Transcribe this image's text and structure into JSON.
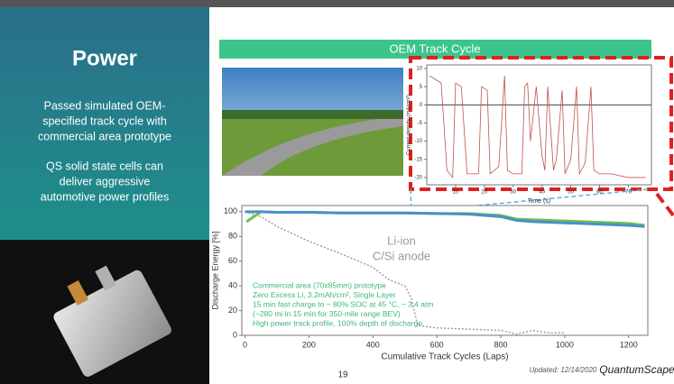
{
  "sidebar": {
    "title": "Power",
    "paragraphs": [
      [
        "Passed simulated OEM-",
        "specified track cycle with",
        "commercial area prototype"
      ],
      [
        "QS solid state cells can",
        "deliver aggressive",
        "automotive power profiles"
      ]
    ]
  },
  "banner": "OEM Track Cycle",
  "charts": [
    {
      "type": "line",
      "y_label": "Discharge Energy [%]",
      "x_label": "Cumulative Track Cycles (Laps)",
      "xlim": [
        -10,
        1260
      ],
      "ylim": [
        0,
        105
      ],
      "xticks": [
        0,
        200,
        400,
        600,
        800,
        1000,
        1200
      ],
      "yticks": [
        0,
        20,
        40,
        60,
        80,
        100
      ],
      "annotations": [
        "Li-ion",
        "C/Si anode"
      ],
      "notes": [
        "Commercial area (70x85mm) prototype",
        "Zero Excess Li, 3.2mAh/cm², Single Layer",
        "15 min fast charge to ~ 80% SOC at 45 °C, ~ 3.4 atm",
        "(~280 mi in 15 min for 350-mile range BEV)",
        "High power track profile, 100% depth of discharge"
      ],
      "series": [
        {
          "color": "#9e9e9e",
          "dashed": true,
          "x": [
            0,
            50,
            100,
            200,
            300,
            400,
            450,
            500,
            520,
            540,
            600,
            700,
            800,
            850,
            900,
            950,
            1000
          ],
          "values": [
            100,
            96,
            88,
            76,
            66,
            55,
            45,
            40,
            30,
            8,
            6,
            5,
            4,
            1,
            4,
            2,
            2
          ]
        },
        {
          "color": "#6cc04a",
          "dashed": false,
          "x": [
            5,
            50,
            100,
            200,
            300,
            400,
            500,
            600,
            700,
            800,
            850,
            900,
            1000,
            1100,
            1200,
            1250
          ],
          "values": [
            92,
            100,
            99.5,
            99.5,
            99,
            99,
            99,
            98.5,
            98.5,
            97,
            94,
            93.5,
            92.5,
            91.5,
            90.5,
            89
          ]
        },
        {
          "color": "#4a90c8",
          "dashed": false,
          "x": [
            0,
            50,
            100,
            200,
            300,
            400,
            500,
            600,
            700,
            800,
            850,
            900,
            1000,
            1100,
            1200,
            1250
          ],
          "values": [
            100,
            100,
            99.5,
            99.5,
            99,
            99,
            99,
            98.5,
            98,
            96,
            93,
            92,
            91,
            90,
            89,
            88
          ]
        }
      ]
    },
    {
      "type": "line",
      "y_label": "Current density (mA/cm²)",
      "x_label": "Time (s)",
      "xlim": [
        0,
        78
      ],
      "ylim": [
        -22,
        11
      ],
      "xticks": [
        10,
        20,
        30,
        40,
        50,
        60,
        70
      ],
      "yticks": [
        10,
        5,
        0,
        -5,
        -10,
        -15,
        -20
      ],
      "zero_line": true,
      "series": [
        {
          "color": "#c0504d",
          "dashed": false,
          "x": [
            1,
            3,
            5,
            7,
            9,
            10,
            12,
            14,
            15,
            18,
            19,
            21,
            22,
            25,
            27,
            28,
            30,
            33,
            34,
            35,
            36,
            38,
            40,
            41,
            42,
            44,
            45,
            47,
            48,
            50,
            52,
            53,
            55,
            57,
            58,
            60,
            62,
            64,
            70,
            76
          ],
          "values": [
            8,
            7,
            6,
            -18,
            -20,
            6,
            5,
            -19,
            -19,
            -19,
            5,
            4,
            -19,
            -17,
            8,
            -18,
            -19,
            -19,
            5,
            6,
            -10,
            5,
            -14,
            -18,
            5,
            -18,
            -15,
            4,
            -19,
            -15,
            5,
            -19,
            -16,
            5,
            -18,
            -19,
            -19,
            -19,
            -20,
            -20
          ]
        }
      ]
    }
  ],
  "footer": {
    "page": "19",
    "updated": "Updated: 12/14/2020",
    "logo": "QuantumScape"
  }
}
